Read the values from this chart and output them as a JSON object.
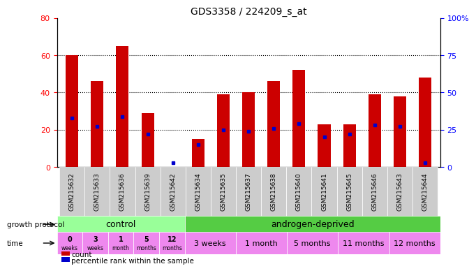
{
  "title": "GDS3358 / 224209_s_at",
  "samples": [
    "GSM215632",
    "GSM215633",
    "GSM215636",
    "GSM215639",
    "GSM215642",
    "GSM215634",
    "GSM215635",
    "GSM215637",
    "GSM215638",
    "GSM215640",
    "GSM215641",
    "GSM215645",
    "GSM215646",
    "GSM215643",
    "GSM215644"
  ],
  "count_values": [
    60,
    46,
    65,
    29,
    0,
    15,
    39,
    40,
    46,
    52,
    23,
    23,
    39,
    38,
    48
  ],
  "percentile_values": [
    33,
    27,
    34,
    22,
    3,
    15,
    25,
    24,
    26,
    29,
    20,
    22,
    28,
    27,
    3
  ],
  "ylim_left": [
    0,
    80
  ],
  "ylim_right": [
    0,
    100
  ],
  "yticks_left": [
    0,
    20,
    40,
    60,
    80
  ],
  "yticks_right": [
    0,
    25,
    50,
    75,
    100
  ],
  "bar_color": "#cc0000",
  "dot_color": "#0000cc",
  "bg_color": "#ffffff",
  "control_color": "#99ff99",
  "androgen_color": "#55cc44",
  "time_color_light": "#ee88ee",
  "time_color_pink": "#cc55cc",
  "label_bg_color": "#cccccc",
  "control_label": "control",
  "androgen_label": "androgen-deprived",
  "protocol_label": "growth protocol",
  "time_label": "time",
  "control_times_line1": [
    "0",
    "3",
    "1",
    "5",
    "12"
  ],
  "control_times_line2": [
    "weeks",
    "weeks",
    "month",
    "months",
    "months"
  ],
  "androgen_groups": [
    [
      5,
      7,
      "3 weeks"
    ],
    [
      7,
      9,
      "1 month"
    ],
    [
      9,
      11,
      "5 months"
    ],
    [
      11,
      13,
      "11 months"
    ],
    [
      13,
      15,
      "12 months"
    ]
  ],
  "legend_count_label": "count",
  "legend_pct_label": "percentile rank within the sample",
  "n_control": 5,
  "n_samples": 15
}
